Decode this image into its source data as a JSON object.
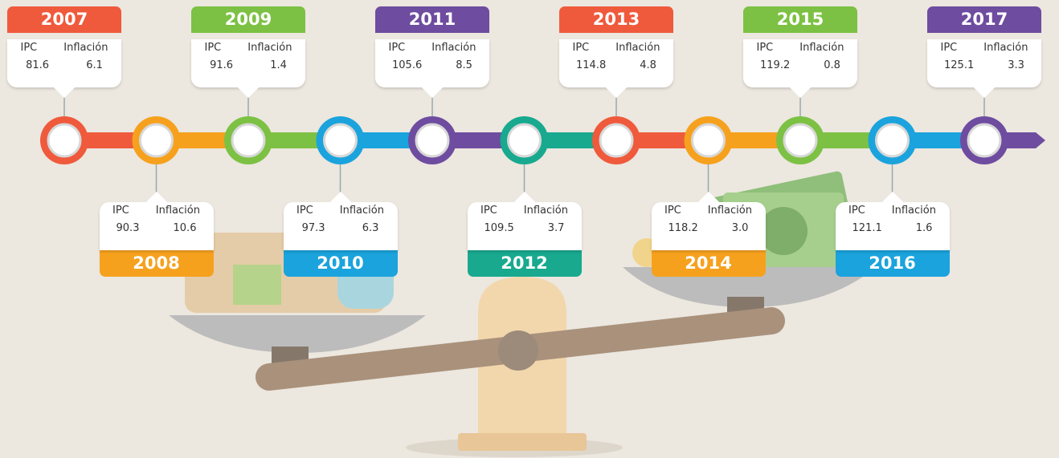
{
  "entries": [
    {
      "year": "2007",
      "ipc_label": "IPC",
      "inflacion_label": "Inflación",
      "ipc": "81.6",
      "inflacion": "6.1",
      "color": "#ef5a3c"
    },
    {
      "year": "2008",
      "ipc_label": "IPC",
      "inflacion_label": "Inflación",
      "ipc": "90.3",
      "inflacion": "10.6",
      "color": "#f6a11e"
    },
    {
      "year": "2009",
      "ipc_label": "IPC",
      "inflacion_label": "Inflación",
      "ipc": "91.6",
      "inflacion": "1.4",
      "color": "#7cc143"
    },
    {
      "year": "2010",
      "ipc_label": "IPC",
      "inflacion_label": "Inflación",
      "ipc": "97.3",
      "inflacion": "6.3",
      "color": "#1ba3dd"
    },
    {
      "year": "2011",
      "ipc_label": "IPC",
      "inflacion_label": "Inflación",
      "ipc": "105.6",
      "inflacion": "8.5",
      "color": "#6e4c9f"
    },
    {
      "year": "2012",
      "ipc_label": "IPC",
      "inflacion_label": "Inflación",
      "ipc": "109.5",
      "inflacion": "3.7",
      "color": "#18a98f"
    },
    {
      "year": "2013",
      "ipc_label": "IPC",
      "inflacion_label": "Inflación",
      "ipc": "114.8",
      "inflacion": "4.8",
      "color": "#ef5a3c"
    },
    {
      "year": "2014",
      "ipc_label": "IPC",
      "inflacion_label": "Inflación",
      "ipc": "118.2",
      "inflacion": "3.0",
      "color": "#f6a11e"
    },
    {
      "year": "2015",
      "ipc_label": "IPC",
      "inflacion_label": "Inflación",
      "ipc": "119.2",
      "inflacion": "0.8",
      "color": "#7cc143"
    },
    {
      "year": "2016",
      "ipc_label": "IPC",
      "inflacion_label": "Inflación",
      "ipc": "121.1",
      "inflacion": "1.6",
      "color": "#1ba3dd"
    },
    {
      "year": "2017",
      "ipc_label": "IPC",
      "inflacion_label": "Inflación",
      "ipc": "125.1",
      "inflacion": "3.3",
      "color": "#6e4c9f"
    }
  ]
}
